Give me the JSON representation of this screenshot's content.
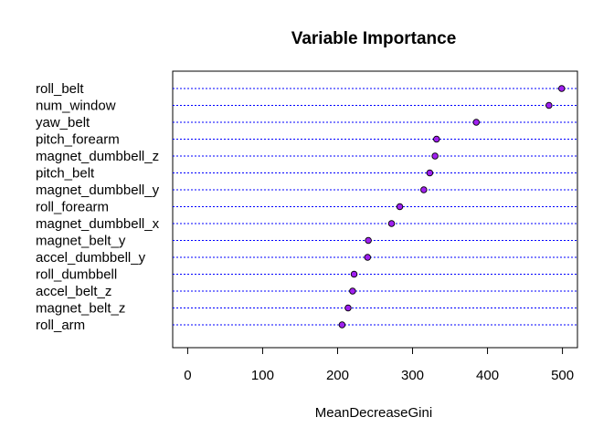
{
  "chart_data": {
    "type": "scatter",
    "subtype": "dotchart",
    "title": "Variable Importance",
    "xlabel": "MeanDecreaseGini",
    "ylabel": "",
    "xlim": [
      -20,
      520
    ],
    "xticks": [
      0,
      100,
      200,
      300,
      400,
      500
    ],
    "grid": "dotted horizontal lines per row",
    "colors": {
      "point_fill": "#a020f0",
      "point_stroke": "#000000",
      "grid": "#0000ff"
    },
    "categories": [
      "roll_belt",
      "num_window",
      "yaw_belt",
      "pitch_forearm",
      "magnet_dumbbell_z",
      "pitch_belt",
      "magnet_dumbbell_y",
      "roll_forearm",
      "magnet_dumbbell_x",
      "magnet_belt_y",
      "accel_dumbbell_y",
      "roll_dumbbell",
      "accel_belt_z",
      "magnet_belt_z",
      "roll_arm"
    ],
    "values": [
      499,
      482,
      385,
      332,
      330,
      323,
      315,
      283,
      272,
      241,
      240,
      222,
      220,
      214,
      206
    ]
  }
}
